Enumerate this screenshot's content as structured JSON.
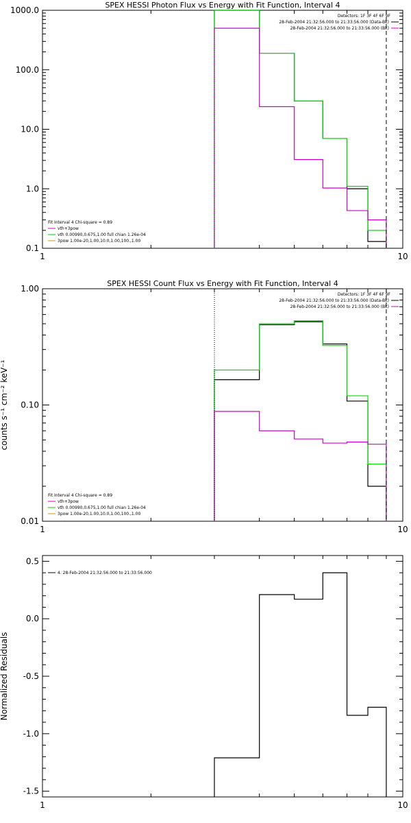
{
  "chart_data": [
    {
      "type": "line",
      "title": "SPEX HESSI Photon Flux vs Energy with Fit Function, Interval 4",
      "xlabel": "",
      "ylabel": "",
      "x_scale": "log",
      "y_scale": "log",
      "xlim": [
        1,
        10
      ],
      "ylim": [
        0.1,
        1000
      ],
      "x_tick_labels": [
        {
          "v": 1,
          "t": "1"
        },
        {
          "v": 10,
          "t": "10"
        }
      ],
      "y_tick_labels": [
        {
          "v": 0.1,
          "t": "0.1"
        },
        {
          "v": 1,
          "t": "1.0"
        },
        {
          "v": 10,
          "t": "10.0"
        },
        {
          "v": 100,
          "t": "100.0"
        },
        {
          "v": 1000,
          "t": "1000.0"
        }
      ],
      "bin_edges": [
        3.0,
        4.0,
        5.0,
        6.0,
        7.0,
        8.0,
        9.0
      ],
      "series": [
        {
          "name": "",
          "color": "#000000",
          "values": [
            1000,
            190,
            30,
            7.0,
            1.0,
            0.13
          ]
        },
        {
          "name": "vth+3pow",
          "color": "#00dd00",
          "values": [
            1000,
            190,
            30,
            7.0,
            1.1,
            0.2
          ]
        },
        {
          "name": "",
          "color": "#cc00cc",
          "values": [
            500,
            24,
            3.1,
            1.03,
            0.43,
            0.3
          ]
        }
      ],
      "vlines": [
        {
          "x": 3.0,
          "color": "#00cc00",
          "style": "dotted"
        },
        {
          "x": 9.0,
          "color": "#000000",
          "style": "dashed"
        }
      ],
      "legend_top_right": {
        "header": "Detectors: 1F 3F 4F 6F 9F",
        "entries": [
          {
            "text": "28-Feb-2004 21:32:56.000 to 21:33:56.000 (Data-Bk)",
            "color": "#000000"
          },
          {
            "text": "28-Feb-2004 21:32:56.000 to 21:33:56.000 (Bk)",
            "color": "#cc00cc"
          }
        ]
      },
      "legend_bottom_left": {
        "header": "Fit Interval  4   Chi-square = 0.89",
        "entries": [
          {
            "text": "vth+3pow",
            "color": "#cc00cc"
          },
          {
            "text": "vth 0.00990,0.675,1.00  full chian 1.26e-04",
            "color": "#00cc00"
          },
          {
            "text": "3pow 1.00e-20,1.00,10.0,1.00,100.,1.00",
            "color": "#cc9900"
          }
        ]
      }
    },
    {
      "type": "line",
      "title": "SPEX HESSI Count Flux vs Energy with Fit Function, Interval 4",
      "xlabel": "",
      "ylabel": "counts s⁻¹ cm⁻² keV⁻¹",
      "x_scale": "log",
      "y_scale": "log",
      "xlim": [
        1,
        10
      ],
      "ylim": [
        0.01,
        1.0
      ],
      "x_tick_labels": [
        {
          "v": 1,
          "t": "1"
        },
        {
          "v": 10,
          "t": "10"
        }
      ],
      "y_tick_labels": [
        {
          "v": 0.01,
          "t": "0.01"
        },
        {
          "v": 0.1,
          "t": "0.10"
        },
        {
          "v": 1,
          "t": "1.00"
        }
      ],
      "bin_edges": [
        3.0,
        4.0,
        5.0,
        6.0,
        7.0,
        8.0,
        9.0
      ],
      "series": [
        {
          "name": "",
          "color": "#000000",
          "values": [
            0.165,
            0.49,
            0.52,
            0.335,
            0.108,
            0.02
          ]
        },
        {
          "name": "vth+3pow",
          "color": "#00dd00",
          "values": [
            0.2,
            0.5,
            0.53,
            0.325,
            0.12,
            0.031
          ]
        },
        {
          "name": "",
          "color": "#cc00cc",
          "values": [
            0.088,
            0.06,
            0.051,
            0.047,
            0.048,
            0.046
          ]
        }
      ],
      "vlines": [
        {
          "x": 3.0,
          "color": "#000000",
          "style": "dotted"
        },
        {
          "x": 9.0,
          "color": "#000000",
          "style": "dashed"
        }
      ],
      "legend_top_right": {
        "header": "Detectors: 1F 3F 4F 6F 9F",
        "entries": [
          {
            "text": "28-Feb-2004 21:32:56.000 to 21:33:56.000 (Data-Bk)",
            "color": "#000000"
          },
          {
            "text": "28-Feb-2004 21:32:56.000 to 21:33:56.000 (Bk)",
            "color": "#cc00cc"
          }
        ]
      },
      "legend_bottom_left": {
        "header": "Fit Interval  4   Chi-square = 0.89",
        "entries": [
          {
            "text": "vth+3pow",
            "color": "#cc00cc"
          },
          {
            "text": "vth 0.00990,0.675,1.00  full chian 1.26e-04",
            "color": "#00cc00"
          },
          {
            "text": "3pow 1.00e-20,1.00,10.0,1.00,100.,1.00",
            "color": "#cc9900"
          }
        ]
      }
    },
    {
      "type": "line",
      "title": "",
      "xlabel": "",
      "ylabel": "Normalized Residuals",
      "x_scale": "log",
      "y_scale": "linear",
      "xlim": [
        1,
        10
      ],
      "ylim": [
        -1.55,
        0.55
      ],
      "x_tick_labels": [
        {
          "v": 1,
          "t": "1"
        },
        {
          "v": 10,
          "t": "10"
        }
      ],
      "y_tick_labels": [
        {
          "v": -1.5,
          "t": "-1.5"
        },
        {
          "v": -1.0,
          "t": "-1.0"
        },
        {
          "v": -0.5,
          "t": "-0.5"
        },
        {
          "v": 0.0,
          "t": "0.0"
        },
        {
          "v": 0.5,
          "t": "0.5"
        }
      ],
      "bin_edges": [
        3.0,
        4.0,
        5.0,
        6.0,
        7.0,
        8.0,
        9.0
      ],
      "series": [
        {
          "name": "4. 28-Feb-2004 21:32:56.000 to 21:33:56.000",
          "color": "#000000",
          "values": [
            -1.21,
            0.21,
            0.17,
            0.4,
            -0.84,
            -0.77
          ]
        }
      ],
      "vlines": [],
      "legend_top_left": {
        "entries": [
          {
            "text": "4. 28-Feb-2004 21:32:56.000 to 21:33:56.000",
            "color": "#000000"
          }
        ]
      }
    }
  ]
}
